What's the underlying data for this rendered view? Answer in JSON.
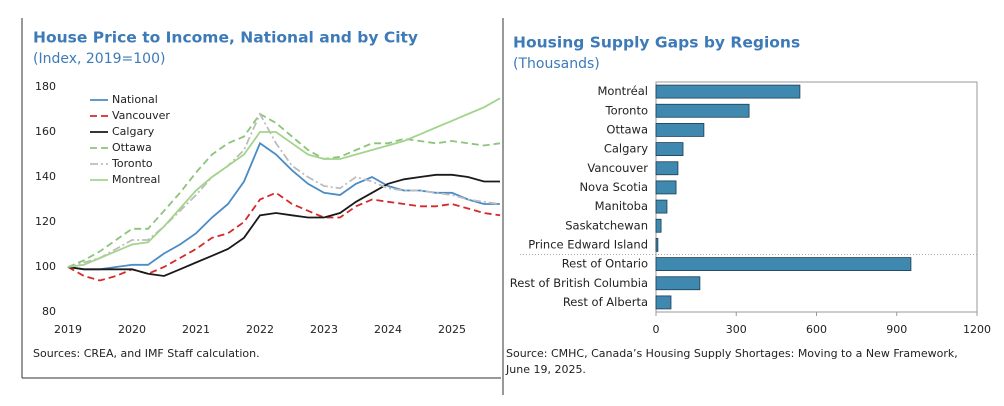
{
  "chart_data": [
    {
      "type": "line",
      "title": "House Price to Income, National and by City",
      "subtitle": "(Index, 2019=100)",
      "note": [
        "Sources: CREA, and IMF Staff calculation."
      ],
      "x": [
        2019,
        2019.25,
        2019.5,
        2019.75,
        2020,
        2020.25,
        2020.5,
        2020.75,
        2021,
        2021.25,
        2021.5,
        2021.75,
        2022,
        2022.25,
        2022.5,
        2022.75,
        2023,
        2023.25,
        2023.5,
        2023.75,
        2024,
        2024.25,
        2024.5,
        2024.75,
        2025,
        2025.25,
        2025.5,
        2025.75
      ],
      "xlim": [
        2019,
        2025.75
      ],
      "xticks": [
        2019,
        2020,
        2021,
        2022,
        2023,
        2024,
        2025
      ],
      "ylim": [
        80,
        180
      ],
      "yticks": [
        80,
        100,
        120,
        140,
        160,
        180
      ],
      "grid": false,
      "legend": "upper left",
      "series": [
        {
          "name": "National",
          "color": "#4a8cc6",
          "dash": "solid",
          "values": [
            100,
            99,
            99,
            100,
            101,
            101,
            106,
            110,
            115,
            122,
            128,
            138,
            155,
            150,
            143,
            137,
            133,
            132,
            137,
            140,
            136,
            134,
            134,
            133,
            133,
            130,
            128,
            128
          ]
        },
        {
          "name": "Vancouver",
          "color": "#d42a2a",
          "dash": "dashed",
          "values": [
            100,
            96,
            94,
            96,
            99,
            97,
            100,
            104,
            108,
            113,
            115,
            120,
            130,
            133,
            128,
            125,
            122,
            122,
            127,
            130,
            129,
            128,
            127,
            127,
            128,
            126,
            124,
            123
          ]
        },
        {
          "name": "Calgary",
          "color": "#1a1a1a",
          "dash": "solid",
          "values": [
            100,
            99,
            99,
            99,
            99,
            97,
            96,
            99,
            102,
            105,
            108,
            113,
            123,
            124,
            123,
            122,
            122,
            124,
            129,
            133,
            137,
            139,
            140,
            141,
            141,
            140,
            138,
            138
          ]
        },
        {
          "name": "Ottawa",
          "color": "#8cc47a",
          "dash": "dashed",
          "values": [
            100,
            103,
            107,
            112,
            117,
            117,
            125,
            133,
            142,
            150,
            155,
            158,
            168,
            164,
            158,
            152,
            148,
            149,
            152,
            155,
            155,
            157,
            156,
            155,
            156,
            155,
            154,
            155
          ]
        },
        {
          "name": "Toronto",
          "color": "#bdbdbd",
          "dash": "dashdot",
          "values": [
            100,
            102,
            104,
            108,
            112,
            112,
            118,
            125,
            132,
            140,
            145,
            152,
            168,
            155,
            145,
            140,
            136,
            135,
            140,
            138,
            135,
            134,
            134,
            133,
            132,
            130,
            129,
            128
          ]
        },
        {
          "name": "Montreal",
          "color": "#a3d48c",
          "dash": "solid",
          "values": [
            100,
            101,
            104,
            107,
            110,
            111,
            118,
            126,
            134,
            140,
            145,
            150,
            160,
            160,
            155,
            150,
            148,
            148,
            150,
            152,
            154,
            156,
            159,
            162,
            165,
            168,
            171,
            175
          ]
        }
      ]
    },
    {
      "type": "bar",
      "orientation": "horizontal",
      "title": "Housing Supply Gaps by Regions",
      "subtitle": "(Thousands)",
      "note": [
        "Source: CMHC, Canada’s Housing Supply Shortages: Moving to a New Framework,",
        "June 19, 2025."
      ],
      "categories": [
        "Montréal",
        "Toronto",
        "Ottawa",
        "Calgary",
        "Vancouver",
        "Nova Scotia",
        "Manitoba",
        "Saskatchewan",
        "Prince Edward Island",
        "Rest of Ontario",
        "Rest of British Columbia",
        "Rest of Alberta"
      ],
      "values": [
        538,
        348,
        179,
        101,
        82,
        75,
        41,
        19,
        7,
        953,
        164,
        56
      ],
      "color": "#3f88b0",
      "xlim": [
        0,
        1200
      ],
      "xticks": [
        0,
        300,
        600,
        900,
        1200
      ],
      "grid": false
    }
  ]
}
